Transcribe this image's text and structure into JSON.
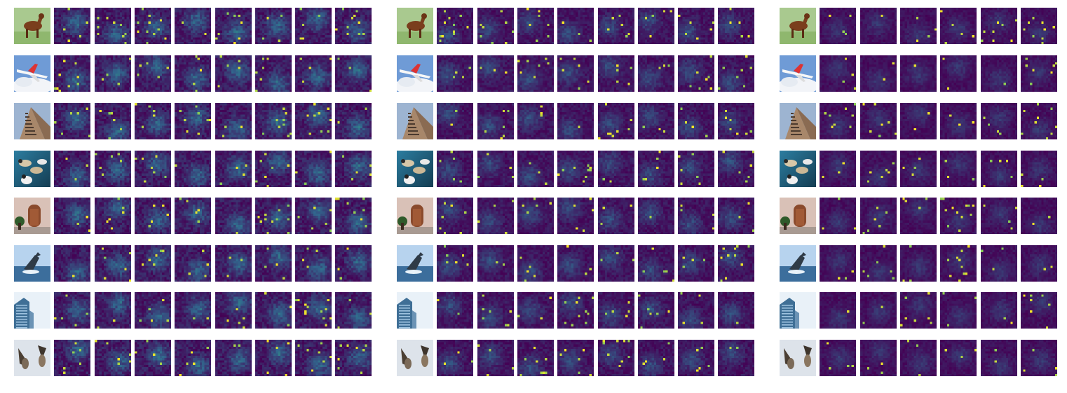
{
  "figure": {
    "description_type": "attention-map grid",
    "panels": [
      {
        "id": "panel-1",
        "map_columns": 8
      },
      {
        "id": "panel-2",
        "map_columns": 8
      },
      {
        "id": "panel-3",
        "map_columns": 6
      }
    ],
    "rows": [
      {
        "subject": "horse"
      },
      {
        "subject": "airplane"
      },
      {
        "subject": "building"
      },
      {
        "subject": "ducks"
      },
      {
        "subject": "door"
      },
      {
        "subject": "whale"
      },
      {
        "subject": "skyscraper"
      },
      {
        "subject": "birds"
      }
    ],
    "colormap": {
      "low": "#440154",
      "mid": "#31688e",
      "mid2": "#35b779",
      "high": "#fde725"
    }
  }
}
